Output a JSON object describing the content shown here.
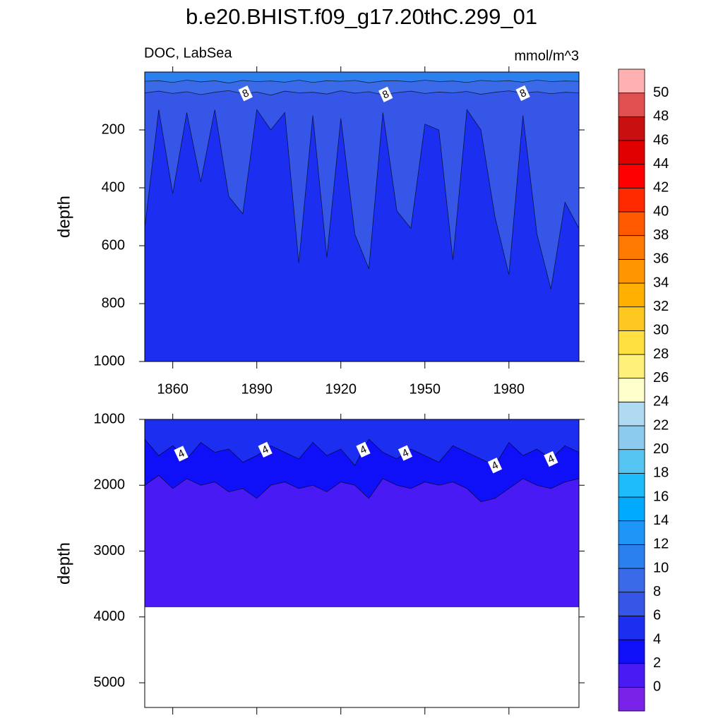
{
  "title": "b.e20.BHIST.f09_g17.20thC.299_01",
  "colorbar": {
    "levels": [
      0,
      2,
      4,
      6,
      8,
      10,
      12,
      14,
      16,
      18,
      20,
      22,
      24,
      26,
      28,
      30,
      32,
      34,
      36,
      38,
      40,
      42,
      44,
      46,
      48,
      50
    ],
    "colors": [
      "#7b22e8",
      "#4a1af5",
      "#1010f8",
      "#1c2ff0",
      "#3556e6",
      "#3a6ae8",
      "#2a80ee",
      "#1e96f8",
      "#00aaff",
      "#1ebcf8",
      "#56c4f0",
      "#8ccbee",
      "#b0daf2",
      "#ffffcc",
      "#fff07a",
      "#ffe040",
      "#ffc820",
      "#ffb000",
      "#ff9600",
      "#ff7a00",
      "#ff5a00",
      "#ff2a00",
      "#ff0000",
      "#e00000",
      "#c81010",
      "#e05050",
      "#ffb0b0"
    ]
  },
  "chart_data": [
    {
      "type": "contour",
      "left_label": "DOC, LabSea",
      "right_label": "mmol/m^3",
      "y_label": "depth",
      "y_reversed": true,
      "xlim": [
        1850,
        2005
      ],
      "xticks": [
        1860,
        1890,
        1920,
        1950,
        1980
      ],
      "ylim": [
        0,
        1000
      ],
      "yticks": [
        200,
        400,
        600,
        800,
        1000
      ],
      "x": [
        1850,
        1855,
        1860,
        1865,
        1870,
        1875,
        1880,
        1885,
        1890,
        1895,
        1900,
        1905,
        1910,
        1915,
        1920,
        1925,
        1930,
        1935,
        1940,
        1945,
        1950,
        1955,
        1960,
        1965,
        1970,
        1975,
        1980,
        1985,
        1990,
        1995,
        2000,
        2005
      ],
      "series": [
        {
          "level": 10,
          "values": [
            32,
            30,
            36,
            28,
            34,
            30,
            38,
            29,
            33,
            31,
            35,
            28,
            36,
            30,
            32,
            29,
            37,
            31,
            30,
            34,
            28,
            33,
            31,
            36,
            29,
            32,
            30,
            35,
            28,
            33,
            31,
            32
          ]
        },
        {
          "level": 8,
          "values": [
            72,
            66,
            74,
            68,
            78,
            70,
            64,
            75,
            69,
            80,
            66,
            72,
            70,
            76,
            65,
            73,
            68,
            79,
            71,
            66,
            74,
            69,
            72,
            67,
            77,
            70,
            65,
            73,
            68,
            75,
            70,
            72
          ]
        },
        {
          "level": 6,
          "values": [
            540,
            130,
            420,
            140,
            380,
            130,
            430,
            490,
            130,
            200,
            140,
            660,
            150,
            640,
            160,
            560,
            680,
            140,
            480,
            540,
            180,
            200,
            650,
            130,
            200,
            500,
            700,
            150,
            560,
            750,
            450,
            540
          ]
        }
      ],
      "line_labels": [
        {
          "level": 8,
          "x": [
            1886,
            1936,
            1985
          ]
        }
      ]
    },
    {
      "type": "contour",
      "y_label": "depth",
      "y_reversed": true,
      "max_depth": 3850,
      "xlim": [
        1850,
        2005
      ],
      "xticks": [
        1860,
        1890,
        1920,
        1950,
        1980
      ],
      "ylim": [
        1000,
        5375
      ],
      "yticks": [
        1000,
        2000,
        3000,
        4000,
        5000
      ],
      "x": [
        1850,
        1855,
        1860,
        1865,
        1870,
        1875,
        1880,
        1885,
        1890,
        1895,
        1900,
        1905,
        1910,
        1915,
        1920,
        1925,
        1930,
        1935,
        1940,
        1945,
        1950,
        1955,
        1960,
        1965,
        1970,
        1975,
        1980,
        1985,
        1990,
        1995,
        2000,
        2005
      ],
      "series": [
        {
          "level": 4,
          "values": [
            1300,
            1550,
            1400,
            1600,
            1350,
            1500,
            1450,
            1650,
            1550,
            1400,
            1500,
            1600,
            1350,
            1550,
            1450,
            1700,
            1300,
            1500,
            1600,
            1450,
            1550,
            1650,
            1400,
            1500,
            1600,
            1700,
            1350,
            1550,
            1450,
            1600,
            1400,
            1500
          ]
        },
        {
          "level": 2,
          "values": [
            2000,
            1850,
            2050,
            1900,
            2000,
            1950,
            2100,
            2050,
            2200,
            2000,
            1950,
            2050,
            2000,
            2100,
            1950,
            2000,
            2200,
            1900,
            2000,
            2050,
            1950,
            2000,
            1950,
            2050,
            2250,
            2200,
            2050,
            1900,
            2000,
            2050,
            1950,
            1900
          ]
        }
      ],
      "line_labels": [
        {
          "level": 4,
          "x": [
            1863,
            1893,
            1928,
            1943,
            1975,
            1995
          ]
        }
      ]
    }
  ]
}
